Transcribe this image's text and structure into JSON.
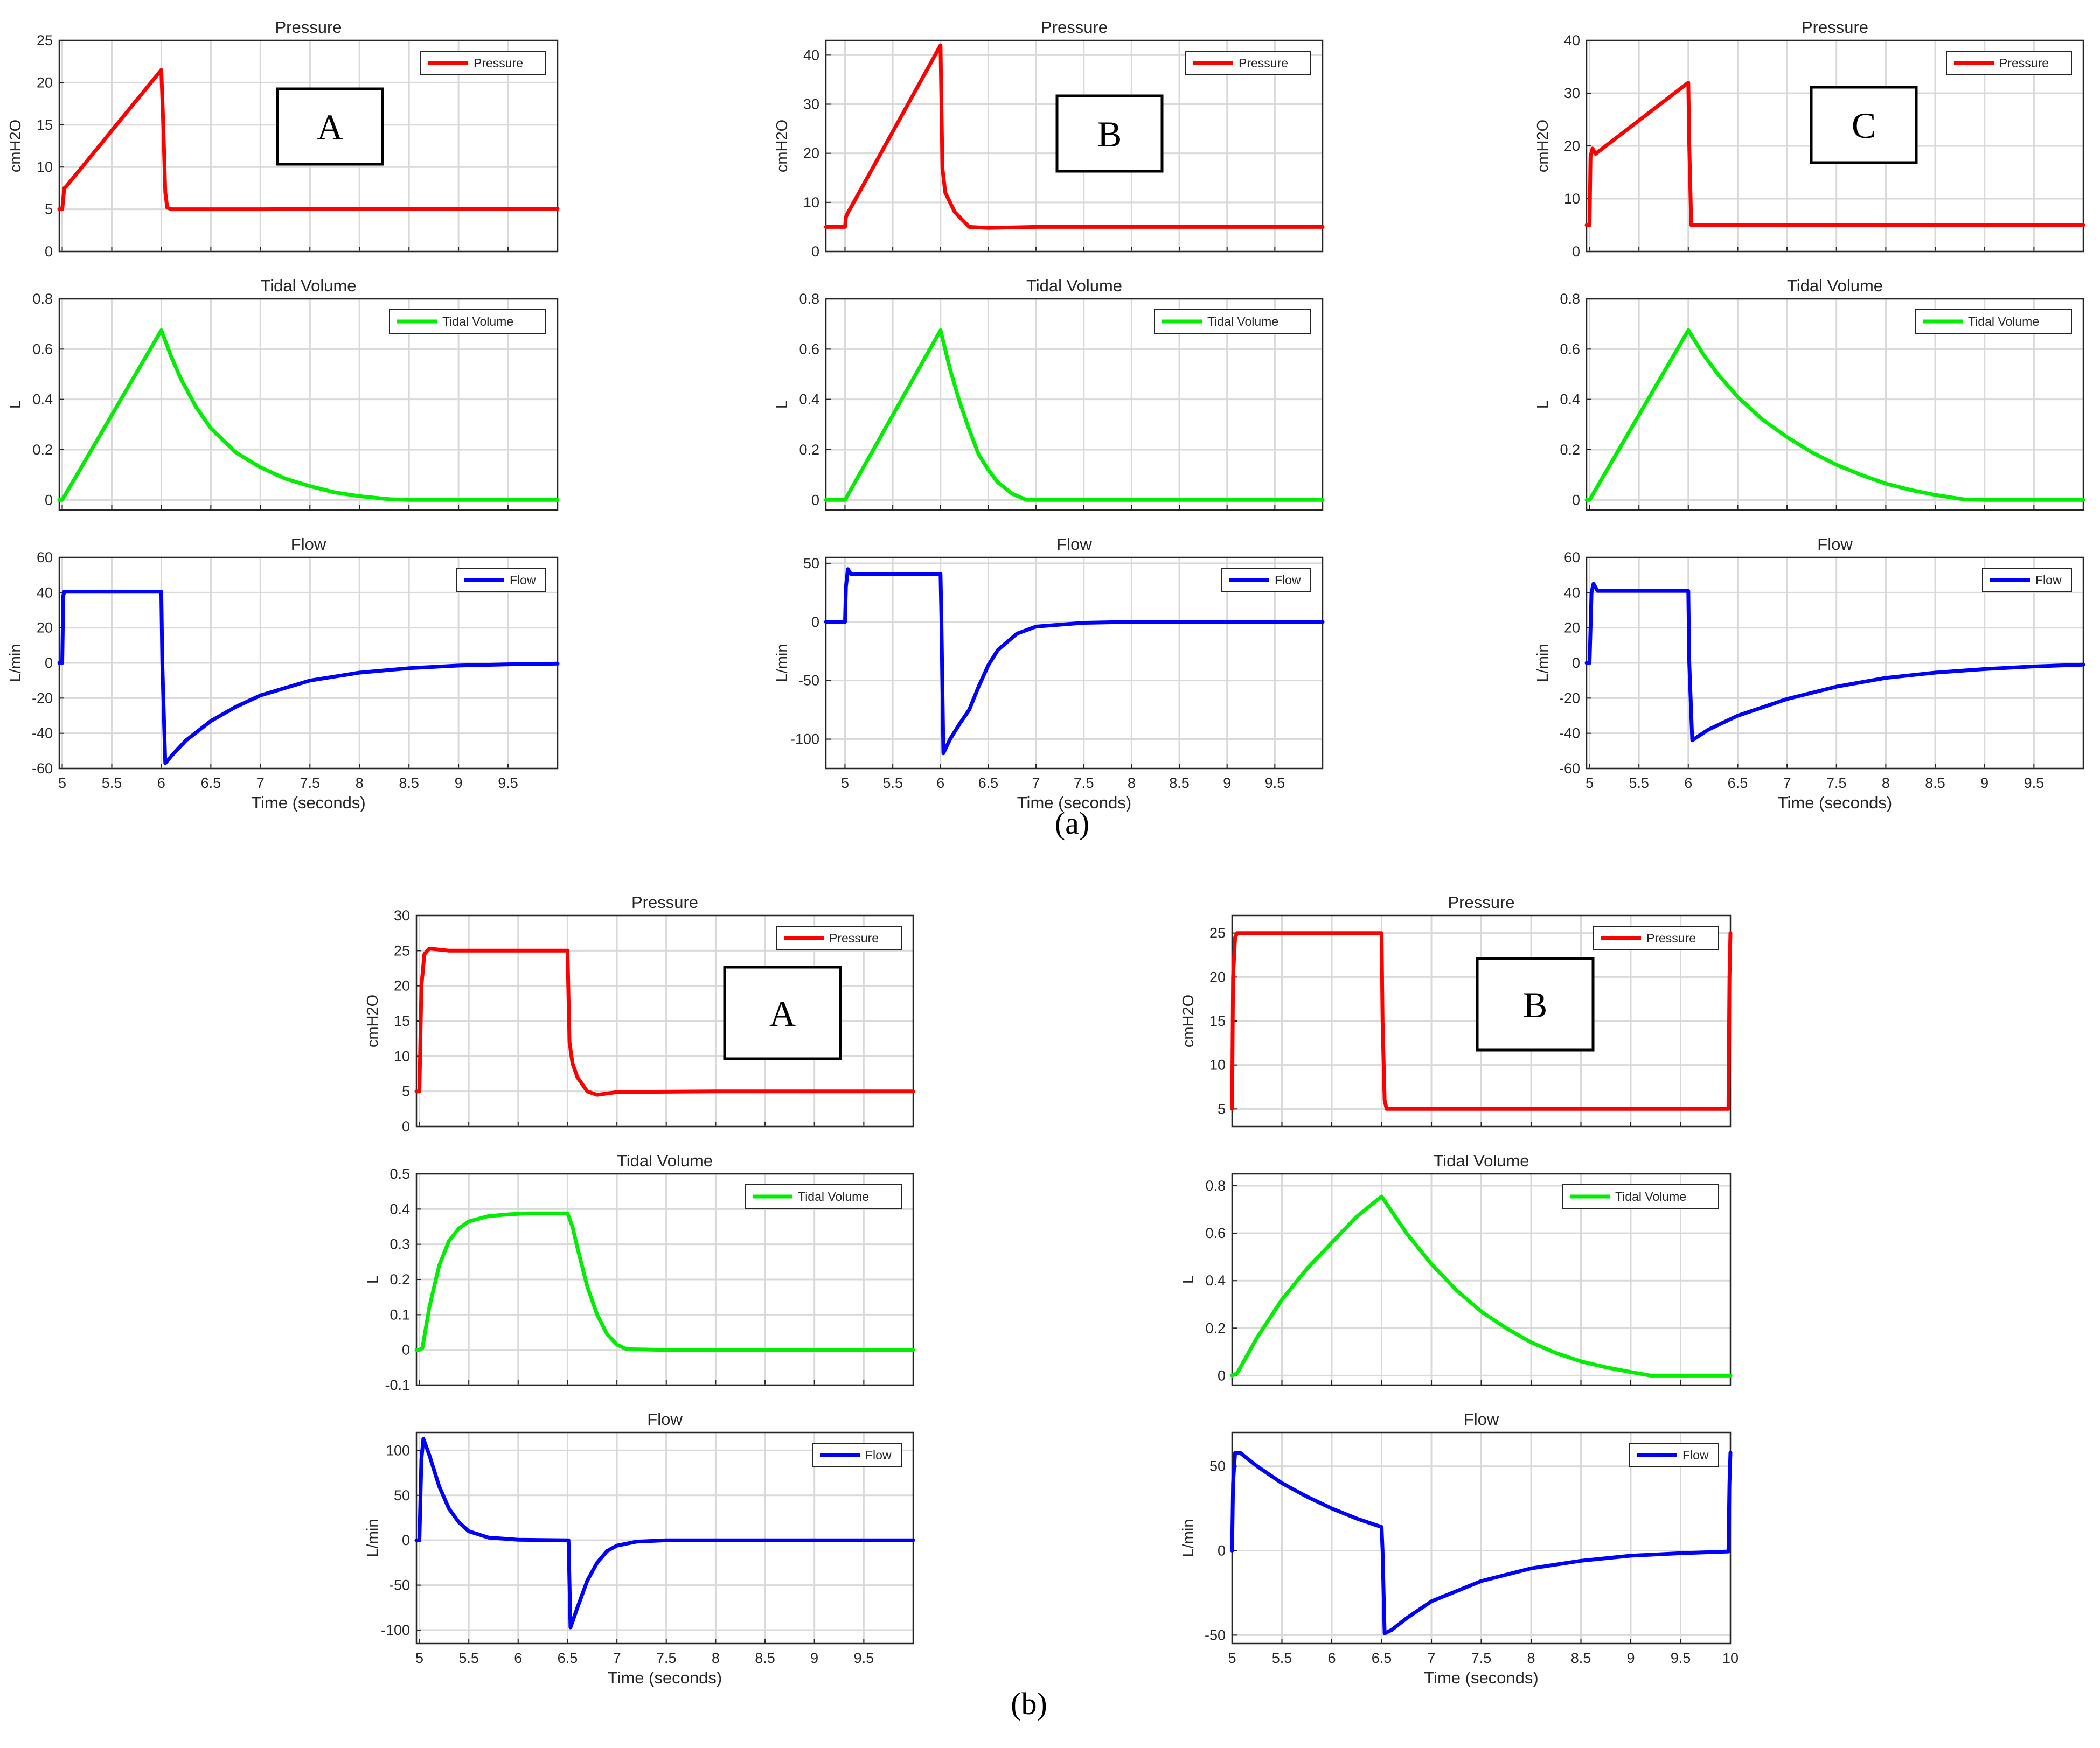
{
  "colors": {
    "pressure": "#ff0000",
    "volume": "#00ee00",
    "flow": "#0000ff",
    "grid": "#d9d9d9",
    "axis": "#262626"
  },
  "captions": {
    "a": "(a)",
    "b": "(b)"
  },
  "xlabel": "Time (seconds)",
  "groups": [
    {
      "id": "a-A",
      "tag": "A",
      "charts": [
        {
          "type": "line",
          "title": "Pressure",
          "ylabel": "cmH2O",
          "legend": "Pressure",
          "series_color": "pressure",
          "xlim": [
            4.97,
            10
          ],
          "ylim": [
            0,
            25
          ],
          "yticks": [
            0,
            5,
            10,
            15,
            20,
            25
          ],
          "x": [
            4.97,
            5.0,
            5.02,
            5.04,
            6.0,
            6.02,
            6.04,
            6.06,
            6.1,
            7,
            8,
            10
          ],
          "y": [
            5,
            5,
            7.5,
            7.7,
            21.5,
            15,
            7,
            5.2,
            5,
            5,
            5.05,
            5.05
          ]
        },
        {
          "type": "line",
          "title": "Tidal Volume",
          "ylabel": "L",
          "legend": "Tidal Volume",
          "series_color": "volume",
          "xlim": [
            4.97,
            10
          ],
          "ylim": [
            -0.04,
            0.8
          ],
          "yticks": [
            0,
            0.2,
            0.4,
            0.6,
            0.8
          ],
          "x": [
            4.97,
            5.0,
            6.0,
            6.1,
            6.2,
            6.35,
            6.5,
            6.75,
            7,
            7.25,
            7.5,
            7.75,
            8,
            8.3,
            8.5,
            9,
            10
          ],
          "y": [
            0,
            0,
            0.675,
            0.57,
            0.48,
            0.37,
            0.285,
            0.19,
            0.13,
            0.085,
            0.055,
            0.03,
            0.015,
            0.003,
            0,
            0,
            0
          ]
        },
        {
          "type": "line",
          "title": "Flow",
          "ylabel": "L/min",
          "legend": "Flow",
          "series_color": "flow",
          "xlabel": "Time (seconds)",
          "xlim": [
            4.97,
            10
          ],
          "ylim": [
            -60,
            60
          ],
          "yticks": [
            -60,
            -40,
            -20,
            0,
            20,
            40,
            60
          ],
          "xticks": [
            5,
            5.5,
            6,
            6.5,
            7,
            7.5,
            8,
            8.5,
            9,
            9.5
          ],
          "x": [
            4.97,
            5.0,
            5.01,
            5.02,
            6.0,
            6.01,
            6.04,
            6.1,
            6.25,
            6.5,
            6.75,
            7,
            7.5,
            8,
            8.5,
            9,
            9.5,
            10
          ],
          "y": [
            0,
            0,
            38,
            40.5,
            40.5,
            0,
            -57,
            -53,
            -44,
            -33,
            -25,
            -18.5,
            -10,
            -5.5,
            -3,
            -1.5,
            -0.8,
            -0.4
          ]
        }
      ]
    },
    {
      "id": "a-B",
      "tag": "B",
      "charts": [
        {
          "type": "line",
          "title": "Pressure",
          "ylabel": "cmH2O",
          "legend": "Pressure",
          "series_color": "pressure",
          "xlim": [
            4.8,
            10
          ],
          "ylim": [
            0,
            43
          ],
          "yticks": [
            0,
            10,
            20,
            30,
            40
          ],
          "x": [
            4.8,
            5.0,
            5.01,
            5.02,
            6.0,
            6.02,
            6.05,
            6.15,
            6.3,
            6.5,
            7,
            8,
            10
          ],
          "y": [
            5,
            5,
            7,
            7.5,
            42,
            17,
            12,
            8,
            5,
            4.8,
            5,
            5,
            5
          ]
        },
        {
          "type": "line",
          "title": "Tidal Volume",
          "ylabel": "L",
          "legend": "Tidal Volume",
          "series_color": "volume",
          "xlim": [
            4.8,
            10
          ],
          "ylim": [
            -0.04,
            0.8
          ],
          "yticks": [
            0,
            0.2,
            0.4,
            0.6,
            0.8
          ],
          "x": [
            4.8,
            5.0,
            6.0,
            6.1,
            6.2,
            6.3,
            6.4,
            6.5,
            6.6,
            6.75,
            6.9,
            7,
            8,
            10
          ],
          "y": [
            0,
            0,
            0.675,
            0.52,
            0.39,
            0.28,
            0.18,
            0.12,
            0.07,
            0.025,
            0,
            0,
            0,
            0
          ]
        },
        {
          "type": "line",
          "title": "Flow",
          "ylabel": "L/min",
          "legend": "Flow",
          "series_color": "flow",
          "xlabel": "Time (seconds)",
          "xlim": [
            4.8,
            10
          ],
          "ylim": [
            -125,
            55
          ],
          "yticks": [
            -100,
            -50,
            0,
            50
          ],
          "xticks": [
            5,
            5.5,
            6,
            6.5,
            7,
            7.5,
            8,
            8.5,
            9,
            9.5
          ],
          "x": [
            4.8,
            5.0,
            5.01,
            5.03,
            5.06,
            6.0,
            6.01,
            6.03,
            6.1,
            6.2,
            6.3,
            6.4,
            6.5,
            6.6,
            6.8,
            7,
            7.5,
            8,
            10
          ],
          "y": [
            0,
            0,
            30,
            45,
            41,
            41,
            0,
            -112,
            -100,
            -87,
            -75,
            -55,
            -37,
            -24,
            -10,
            -4,
            -0.8,
            0,
            0
          ]
        }
      ]
    },
    {
      "id": "a-C",
      "tag": "C",
      "charts": [
        {
          "type": "line",
          "title": "Pressure",
          "ylabel": "cmH2O",
          "legend": "Pressure",
          "series_color": "pressure",
          "xlim": [
            4.97,
            10
          ],
          "ylim": [
            0,
            40
          ],
          "yticks": [
            0,
            10,
            20,
            30,
            40
          ],
          "x": [
            4.97,
            5.0,
            5.01,
            5.03,
            5.06,
            6.0,
            6.01,
            6.03,
            7,
            10
          ],
          "y": [
            5,
            5,
            18,
            19.5,
            18.5,
            32,
            20,
            5,
            5,
            5
          ]
        },
        {
          "type": "line",
          "title": "Tidal Volume",
          "ylabel": "L",
          "legend": "Tidal Volume",
          "series_color": "volume",
          "xlim": [
            4.97,
            10
          ],
          "ylim": [
            -0.04,
            0.8
          ],
          "yticks": [
            0,
            0.2,
            0.4,
            0.6,
            0.8
          ],
          "x": [
            4.97,
            5.0,
            6.0,
            6.15,
            6.3,
            6.5,
            6.75,
            7,
            7.25,
            7.5,
            7.75,
            8,
            8.25,
            8.5,
            8.8,
            9,
            10
          ],
          "y": [
            0,
            0,
            0.675,
            0.58,
            0.5,
            0.41,
            0.32,
            0.25,
            0.19,
            0.14,
            0.1,
            0.065,
            0.04,
            0.02,
            0.002,
            0,
            0
          ]
        },
        {
          "type": "line",
          "title": "Flow",
          "ylabel": "L/min",
          "legend": "Flow",
          "series_color": "flow",
          "xlabel": "Time (seconds)",
          "xlim": [
            4.97,
            10
          ],
          "ylim": [
            -60,
            60
          ],
          "yticks": [
            -60,
            -40,
            -20,
            0,
            20,
            40,
            60
          ],
          "xticks": [
            5,
            5.5,
            6,
            6.5,
            7,
            7.5,
            8,
            8.5,
            9,
            9.5
          ],
          "x": [
            4.97,
            5.0,
            5.02,
            5.04,
            5.08,
            6.0,
            6.01,
            6.04,
            6.2,
            6.5,
            7,
            7.5,
            8,
            8.5,
            9,
            9.5,
            10
          ],
          "y": [
            0,
            0,
            40,
            45,
            41,
            41,
            0,
            -44,
            -38,
            -30,
            -20.5,
            -13.5,
            -8.5,
            -5.5,
            -3.5,
            -2,
            -1
          ]
        }
      ]
    },
    {
      "id": "b-A",
      "tag": "A",
      "charts": [
        {
          "type": "line",
          "title": "Pressure",
          "ylabel": "cmH2O",
          "legend": "Pressure",
          "series_color": "pressure",
          "xlim": [
            4.97,
            10
          ],
          "ylim": [
            0,
            30
          ],
          "yticks": [
            0,
            5,
            10,
            15,
            20,
            25,
            30
          ],
          "x": [
            4.97,
            5.0,
            5.02,
            5.05,
            5.1,
            5.3,
            6.5,
            6.52,
            6.55,
            6.6,
            6.7,
            6.8,
            7,
            8,
            10
          ],
          "y": [
            5,
            5,
            20,
            24.5,
            25.3,
            25,
            25,
            12,
            9,
            7,
            5,
            4.5,
            4.9,
            5,
            5
          ]
        },
        {
          "type": "line",
          "title": "Tidal Volume",
          "ylabel": "L",
          "legend": "Tidal Volume",
          "series_color": "volume",
          "xlim": [
            4.97,
            10
          ],
          "ylim": [
            -0.1,
            0.5
          ],
          "yticks": [
            -0.1,
            0,
            0.1,
            0.2,
            0.3,
            0.4,
            0.5
          ],
          "x": [
            4.97,
            5.0,
            5.03,
            5.1,
            5.2,
            5.3,
            5.4,
            5.5,
            5.7,
            5.9,
            6.1,
            6.5,
            6.55,
            6.6,
            6.7,
            6.8,
            6.9,
            7,
            7.1,
            7.5,
            10
          ],
          "y": [
            0,
            0,
            0.005,
            0.12,
            0.24,
            0.31,
            0.345,
            0.365,
            0.38,
            0.385,
            0.388,
            0.388,
            0.35,
            0.29,
            0.18,
            0.1,
            0.045,
            0.015,
            0.002,
            0,
            0
          ]
        },
        {
          "type": "line",
          "title": "Flow",
          "ylabel": "L/min",
          "legend": "Flow",
          "series_color": "flow",
          "xlabel": "Time (seconds)",
          "xlim": [
            4.97,
            10
          ],
          "ylim": [
            -115,
            120
          ],
          "yticks": [
            -100,
            -50,
            0,
            50,
            100
          ],
          "xticks": [
            5,
            5.5,
            6,
            6.5,
            7,
            7.5,
            8,
            8.5,
            9,
            9.5
          ],
          "x": [
            4.97,
            5.0,
            5.02,
            5.04,
            5.1,
            5.2,
            5.3,
            5.4,
            5.5,
            5.7,
            6.0,
            6.5,
            6.51,
            6.53,
            6.6,
            6.7,
            6.8,
            6.9,
            7,
            7.2,
            7.5,
            8,
            10
          ],
          "y": [
            0,
            0,
            90,
            113,
            95,
            60,
            35,
            20,
            10,
            3,
            0.5,
            0,
            0,
            -97,
            -75,
            -45,
            -25,
            -12,
            -6,
            -1.5,
            0,
            0,
            0
          ]
        }
      ]
    },
    {
      "id": "b-B",
      "tag": "B",
      "charts": [
        {
          "type": "line",
          "title": "Pressure",
          "ylabel": "cmH2O",
          "legend": "Pressure",
          "series_color": "pressure",
          "xlim": [
            5,
            10
          ],
          "ylim": [
            3,
            27
          ],
          "yticks": [
            5,
            10,
            15,
            20,
            25
          ],
          "x": [
            5.0,
            5.01,
            5.03,
            5.05,
            6.5,
            6.51,
            6.53,
            6.55,
            9.98,
            9.99,
            10.0
          ],
          "y": [
            5,
            20,
            24.5,
            25,
            25,
            15,
            6,
            5,
            5,
            20,
            25
          ]
        },
        {
          "type": "line",
          "title": "Tidal Volume",
          "ylabel": "L",
          "legend": "Tidal Volume",
          "series_color": "volume",
          "xlim": [
            5,
            10
          ],
          "ylim": [
            -0.04,
            0.85
          ],
          "yticks": [
            0,
            0.2,
            0.4,
            0.6,
            0.8
          ],
          "x": [
            5.0,
            5.05,
            5.25,
            5.5,
            5.75,
            6,
            6.25,
            6.5,
            6.75,
            7,
            7.25,
            7.5,
            7.75,
            8,
            8.25,
            8.5,
            8.75,
            9,
            9.2,
            9.5,
            10
          ],
          "y": [
            0,
            0.01,
            0.16,
            0.32,
            0.45,
            0.56,
            0.67,
            0.755,
            0.6,
            0.47,
            0.36,
            0.27,
            0.2,
            0.14,
            0.095,
            0.06,
            0.035,
            0.015,
            0,
            0,
            0
          ]
        },
        {
          "type": "line",
          "title": "Flow",
          "ylabel": "L/min",
          "legend": "Flow",
          "series_color": "flow",
          "xlabel": "Time (seconds)",
          "xlim": [
            5,
            10
          ],
          "ylim": [
            -55,
            70
          ],
          "yticks": [
            -50,
            0,
            50
          ],
          "xticks": [
            5,
            5.5,
            6,
            6.5,
            7,
            7.5,
            8,
            8.5,
            9,
            9.5,
            10
          ],
          "x": [
            5.0,
            5.01,
            5.03,
            5.08,
            5.25,
            5.5,
            5.75,
            6,
            6.25,
            6.5,
            6.51,
            6.53,
            6.6,
            6.75,
            7,
            7.5,
            8,
            8.5,
            9,
            9.5,
            9.98,
            9.99,
            10.0
          ],
          "y": [
            0,
            40,
            58,
            58,
            50,
            40,
            32,
            25,
            19,
            14,
            0,
            -49,
            -47,
            -40,
            -30,
            -18,
            -10.5,
            -6,
            -3,
            -1.5,
            -0.5,
            40,
            58
          ]
        }
      ]
    }
  ]
}
